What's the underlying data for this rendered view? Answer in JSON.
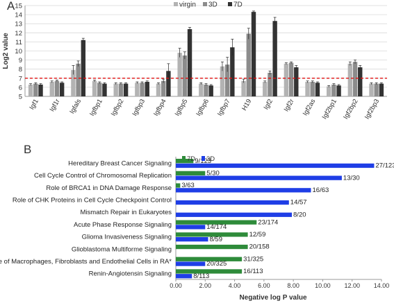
{
  "panel_labels": [
    "A",
    "B"
  ],
  "colors": {
    "virgin": "#b3b3b3",
    "d3_a": "#8c8c8c",
    "d7_a": "#333333",
    "d7_b": "#2e8b3a",
    "d3_b": "#1f3ee6",
    "threshold": "#e01010"
  },
  "chart_data": [
    {
      "type": "bar",
      "panel": "A",
      "ylabel": "Log2 value",
      "xlabel": "",
      "ylim": [
        5,
        15
      ],
      "yticks": [
        5,
        6,
        7,
        8,
        9,
        10,
        11,
        12,
        13,
        14,
        15
      ],
      "grid": true,
      "legend_position": "top-right",
      "threshold_line": 7,
      "categories": [
        "Igf1",
        "Igf1r",
        "Igfals",
        "Igfbp1",
        "Igfbp2",
        "Igfbp3",
        "Igfbp4",
        "Igfbp5",
        "Igfbp6",
        "Igfbp7",
        "H19",
        "Igf2",
        "Igf2r",
        "Igf2as",
        "Igf2bp1",
        "Igf2bp2",
        "Igf2bp3"
      ],
      "series": [
        {
          "name": "virgin",
          "values": [
            6.3,
            6.6,
            7.9,
            6.7,
            6.4,
            6.5,
            6.4,
            9.8,
            6.4,
            8.3,
            6.7,
            6.6,
            8.6,
            6.6,
            6.1,
            8.6,
            6.4
          ],
          "errors": [
            0.1,
            0.1,
            0.5,
            0.1,
            0.1,
            0.1,
            0.1,
            0.5,
            0.1,
            0.5,
            0.2,
            0.1,
            0.1,
            0.1,
            0.1,
            0.2,
            0.1
          ]
        },
        {
          "name": "3D",
          "values": [
            6.4,
            6.7,
            8.6,
            6.5,
            6.4,
            6.5,
            6.7,
            9.5,
            6.3,
            8.5,
            11.9,
            7.6,
            8.7,
            6.6,
            6.3,
            8.8,
            6.4
          ],
          "errors": [
            0.1,
            0.1,
            0.3,
            0.1,
            0.1,
            0.1,
            0.2,
            0.4,
            0.1,
            0.8,
            0.6,
            0.2,
            0.1,
            0.1,
            0.1,
            0.2,
            0.1
          ]
        },
        {
          "name": "7D",
          "values": [
            6.3,
            6.5,
            11.2,
            6.4,
            6.4,
            6.6,
            7.8,
            12.4,
            6.2,
            10.4,
            14.3,
            13.3,
            8.2,
            6.5,
            6.2,
            8.2,
            6.4
          ],
          "errors": [
            0.1,
            0.1,
            0.2,
            0.1,
            0.1,
            0.1,
            0.8,
            0.2,
            0.1,
            0.9,
            0.1,
            0.4,
            0.2,
            0.1,
            0.1,
            0.2,
            0.1
          ]
        }
      ]
    },
    {
      "type": "bar",
      "orientation": "horizontal",
      "panel": "B",
      "xlabel": "Negative log P value",
      "ylabel": "",
      "xlim": [
        0,
        14
      ],
      "xticks": [
        "0.00",
        "2.00",
        "4.00",
        "6.00",
        "8.00",
        "10.00",
        "12.00",
        "14.00"
      ],
      "xtick_values": [
        0,
        2,
        4,
        6,
        8,
        10,
        12,
        14
      ],
      "grid": false,
      "legend_position": "top-left",
      "categories": [
        "Hereditary Breast Cancer Signaling",
        "Cell Cycle Control of Chromosomal Replication",
        "Role of BRCA1 in DNA Damage Response",
        "Role of CHK Proteins in Cell Cycle Checkpoint Control",
        "Mismatch Repair in Eukaryotes",
        "Acute Phase Response Signaling",
        "Glioma Invasiveness Signaling",
        "Glioblastoma Multiforme Signaling",
        "Role of Macrophages, Fibroblasts and Endothelial Cells in RA*",
        "Renin-Angiotensin Signaling"
      ],
      "series": [
        {
          "name": "7D",
          "values": [
            1.2,
            2.0,
            0.3,
            null,
            null,
            5.5,
            4.9,
            4.9,
            4.5,
            4.5
          ],
          "labels": [
            "9/123",
            "5/30",
            "3/63",
            "",
            "",
            "23/174",
            "12/59",
            "20/158",
            "31/325",
            "16/113"
          ]
        },
        {
          "name": "3D",
          "values": [
            13.5,
            11.3,
            9.2,
            7.7,
            7.9,
            2.0,
            2.2,
            null,
            2.0,
            1.1
          ],
          "labels": [
            "27/123",
            "13/30",
            "16/63",
            "14/57",
            "8/20",
            "14/174",
            "8/59",
            "",
            "20/325",
            "8/113"
          ]
        }
      ]
    }
  ]
}
